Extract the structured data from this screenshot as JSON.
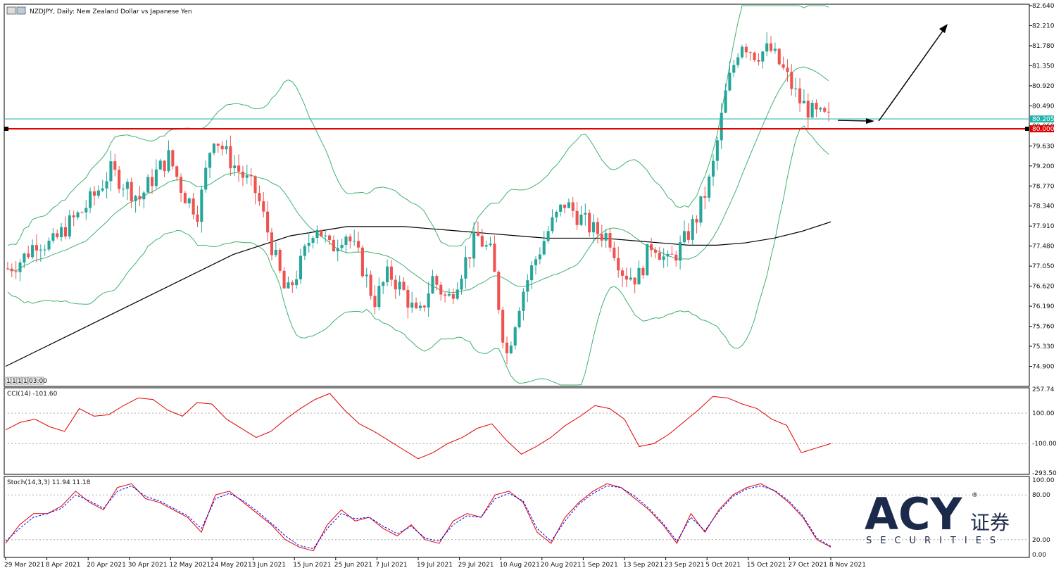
{
  "header": {
    "title": "NZDJPY, Daily:  New Zealand Dollar vs Japanese Yen",
    "timeframe_buttons": [
      "1",
      "1",
      "1",
      "1",
      "03:00"
    ]
  },
  "price_axis": {
    "labels": [
      "82.640",
      "82.210",
      "81.780",
      "81.350",
      "80.920",
      "80.490",
      "80.060",
      "79.630",
      "79.200",
      "78.770",
      "78.340",
      "77.910",
      "77.480",
      "77.050",
      "76.620",
      "76.190",
      "75.760",
      "75.330",
      "74.900"
    ],
    "current_price_label": "80.205",
    "level_label": "80.000"
  },
  "cci": {
    "label": "CCI(14) -101.60",
    "axis_labels": [
      "257.74",
      "100.00",
      "-100.00",
      "-293.50"
    ]
  },
  "stoch": {
    "label": "Stoch(14,3,3) 11.94 11.18",
    "axis_labels": [
      "100.00",
      "80.00",
      "20.00",
      "0.00"
    ]
  },
  "time_axis": {
    "labels": [
      "29 Mar 2021",
      "8 Apr 2021",
      "20 Apr 2021",
      "30 Apr 2021",
      "12 May 2021",
      "24 May 2021",
      "3 Jun 2021",
      "15 Jun 2021",
      "25 Jun 2021",
      "7 Jul 2021",
      "19 Jul 2021",
      "29 Jul 2021",
      "10 Aug 2021",
      "20 Aug 2021",
      "1 Sep 2021",
      "13 Sep 2021",
      "23 Sep 2021",
      "5 Oct 2021",
      "15 Oct 2021",
      "27 Oct 2021",
      "8 Nov 2021"
    ]
  },
  "logo": {
    "main": "ACY",
    "chinese": "证券",
    "sub": "SECURITIES",
    "registered": "®"
  },
  "colors": {
    "bull": "#26a69a",
    "bear": "#ef5350",
    "bollinger": "#3cb371",
    "ma": "#000000",
    "level": "#e00000",
    "current_line": "#20b2aa",
    "cci": "#e00000",
    "stoch_main": "#e00000",
    "stoch_signal": "#0000ff",
    "logo": "#1b2a4a"
  },
  "chart_data": [
    {
      "type": "candlestick",
      "title": "NZDJPY, Daily:  New Zealand Dollar vs Japanese Yen",
      "ylim": [
        74.5,
        82.64
      ],
      "x": [
        "29 Mar 2021",
        "8 Apr 2021",
        "20 Apr 2021",
        "30 Apr 2021",
        "12 May 2021",
        "24 May 2021",
        "3 Jun 2021",
        "15 Jun 2021",
        "25 Jun 2021",
        "7 Jul 2021",
        "19 Jul 2021",
        "29 Jul 2021",
        "10 Aug 2021",
        "20 Aug 2021",
        "1 Sep 2021",
        "13 Sep 2021",
        "23 Sep 2021",
        "5 Oct 2021",
        "15 Oct 2021",
        "27 Oct 2021",
        "8 Nov 2021"
      ],
      "close_path": [
        77.0,
        77.2,
        77.6,
        77.5,
        77.9,
        78.2,
        78.6,
        79.1,
        78.8,
        78.5,
        79.0,
        79.4,
        78.6,
        78.2,
        79.9,
        79.4,
        79.0,
        78.6,
        77.5,
        76.4,
        77.1,
        78.0,
        77.4,
        77.8,
        77.2,
        76.3,
        76.9,
        76.5,
        75.9,
        76.8,
        76.3,
        77.0,
        77.7,
        77.3,
        75.1,
        76.4,
        77.2,
        77.9,
        78.4,
        78.1,
        77.8,
        77.7,
        76.9,
        76.8,
        77.6,
        77.1,
        77.5,
        78.1,
        79.0,
        80.8,
        81.9,
        81.6,
        81.7,
        81.2,
        80.6,
        80.3,
        80.2
      ],
      "moving_average": [
        74.9,
        75.2,
        75.5,
        75.8,
        76.1,
        76.4,
        76.7,
        77.0,
        77.3,
        77.5,
        77.7,
        77.8,
        77.9,
        77.9,
        77.9,
        77.85,
        77.8,
        77.75,
        77.7,
        77.65,
        77.65,
        77.65,
        77.6,
        77.55,
        77.5,
        77.5,
        77.55,
        77.65,
        77.8,
        78.0
      ],
      "horizontal_levels": [
        80.205,
        80.0
      ],
      "current_price": 80.205
    },
    {
      "type": "line",
      "title": "CCI(14) -101.60",
      "ylim": [
        -293.5,
        257.74
      ],
      "levels": [
        100,
        -100
      ],
      "values": [
        -10,
        40,
        60,
        10,
        -20,
        130,
        80,
        90,
        150,
        200,
        190,
        120,
        80,
        170,
        160,
        60,
        0,
        -60,
        -20,
        60,
        130,
        190,
        230,
        120,
        30,
        -20,
        -80,
        -140,
        -200,
        -160,
        -100,
        -60,
        0,
        30,
        -80,
        -170,
        -120,
        -60,
        20,
        80,
        150,
        130,
        60,
        -120,
        -100,
        -40,
        40,
        120,
        210,
        200,
        160,
        130,
        60,
        20,
        -160,
        -130,
        -100
      ]
    },
    {
      "type": "line",
      "title": "Stoch(14,3,3) 11.94 11.18",
      "ylim": [
        0,
        100
      ],
      "levels": [
        80,
        20
      ],
      "series": [
        {
          "values": [
            15,
            40,
            55,
            55,
            65,
            85,
            70,
            60,
            90,
            95,
            75,
            70,
            60,
            50,
            30,
            80,
            85,
            70,
            55,
            40,
            20,
            10,
            5,
            40,
            60,
            45,
            50,
            35,
            25,
            40,
            20,
            15,
            45,
            55,
            50,
            80,
            85,
            70,
            30,
            15,
            50,
            70,
            85,
            95,
            90,
            75,
            60,
            40,
            15,
            55,
            30,
            60,
            80,
            90,
            95,
            85,
            70,
            50,
            20,
            10
          ]
        },
        {
          "values": [
            18,
            35,
            50,
            55,
            62,
            80,
            72,
            62,
            85,
            92,
            78,
            72,
            62,
            52,
            35,
            75,
            82,
            72,
            58,
            42,
            25,
            12,
            8,
            35,
            55,
            48,
            50,
            38,
            28,
            38,
            22,
            18,
            40,
            52,
            50,
            75,
            82,
            72,
            35,
            18,
            45,
            68,
            82,
            92,
            90,
            78,
            62,
            42,
            18,
            50,
            32,
            58,
            78,
            88,
            92,
            86,
            72,
            52,
            22,
            11
          ]
        }
      ]
    }
  ]
}
